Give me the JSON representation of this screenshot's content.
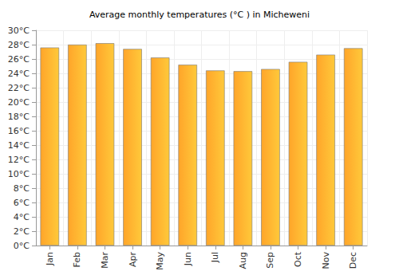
{
  "chart_data": {
    "type": "bar",
    "title": "Average monthly temperatures (°C ) in Micheweni",
    "categories": [
      "Jan",
      "Feb",
      "Mar",
      "Apr",
      "May",
      "Jun",
      "Jul",
      "Aug",
      "Sep",
      "Oct",
      "Nov",
      "Dec"
    ],
    "values": [
      27.6,
      28.0,
      28.2,
      27.4,
      26.2,
      25.2,
      24.4,
      24.3,
      24.6,
      25.6,
      26.6,
      27.5
    ],
    "color": "#ffa52a",
    "ylim": [
      0,
      30
    ],
    "yticks": [
      {
        "value": 0,
        "label": "0°C"
      },
      {
        "value": 2,
        "label": "2°C"
      },
      {
        "value": 4,
        "label": "4°C"
      },
      {
        "value": 6,
        "label": "6°C"
      },
      {
        "value": 8,
        "label": "8°C"
      },
      {
        "value": 10,
        "label": "10°C"
      },
      {
        "value": 12,
        "label": "12°C"
      },
      {
        "value": 14,
        "label": "14°C"
      },
      {
        "value": 16,
        "label": "16°C"
      },
      {
        "value": 18,
        "label": "18°C"
      },
      {
        "value": 20,
        "label": "20°C"
      },
      {
        "value": 22,
        "label": "22°C"
      },
      {
        "value": 24,
        "label": "24°C"
      },
      {
        "value": 26,
        "label": "26°C"
      },
      {
        "value": 28,
        "label": "28°C"
      },
      {
        "value": 30,
        "label": "30°C"
      }
    ],
    "grid": true
  }
}
